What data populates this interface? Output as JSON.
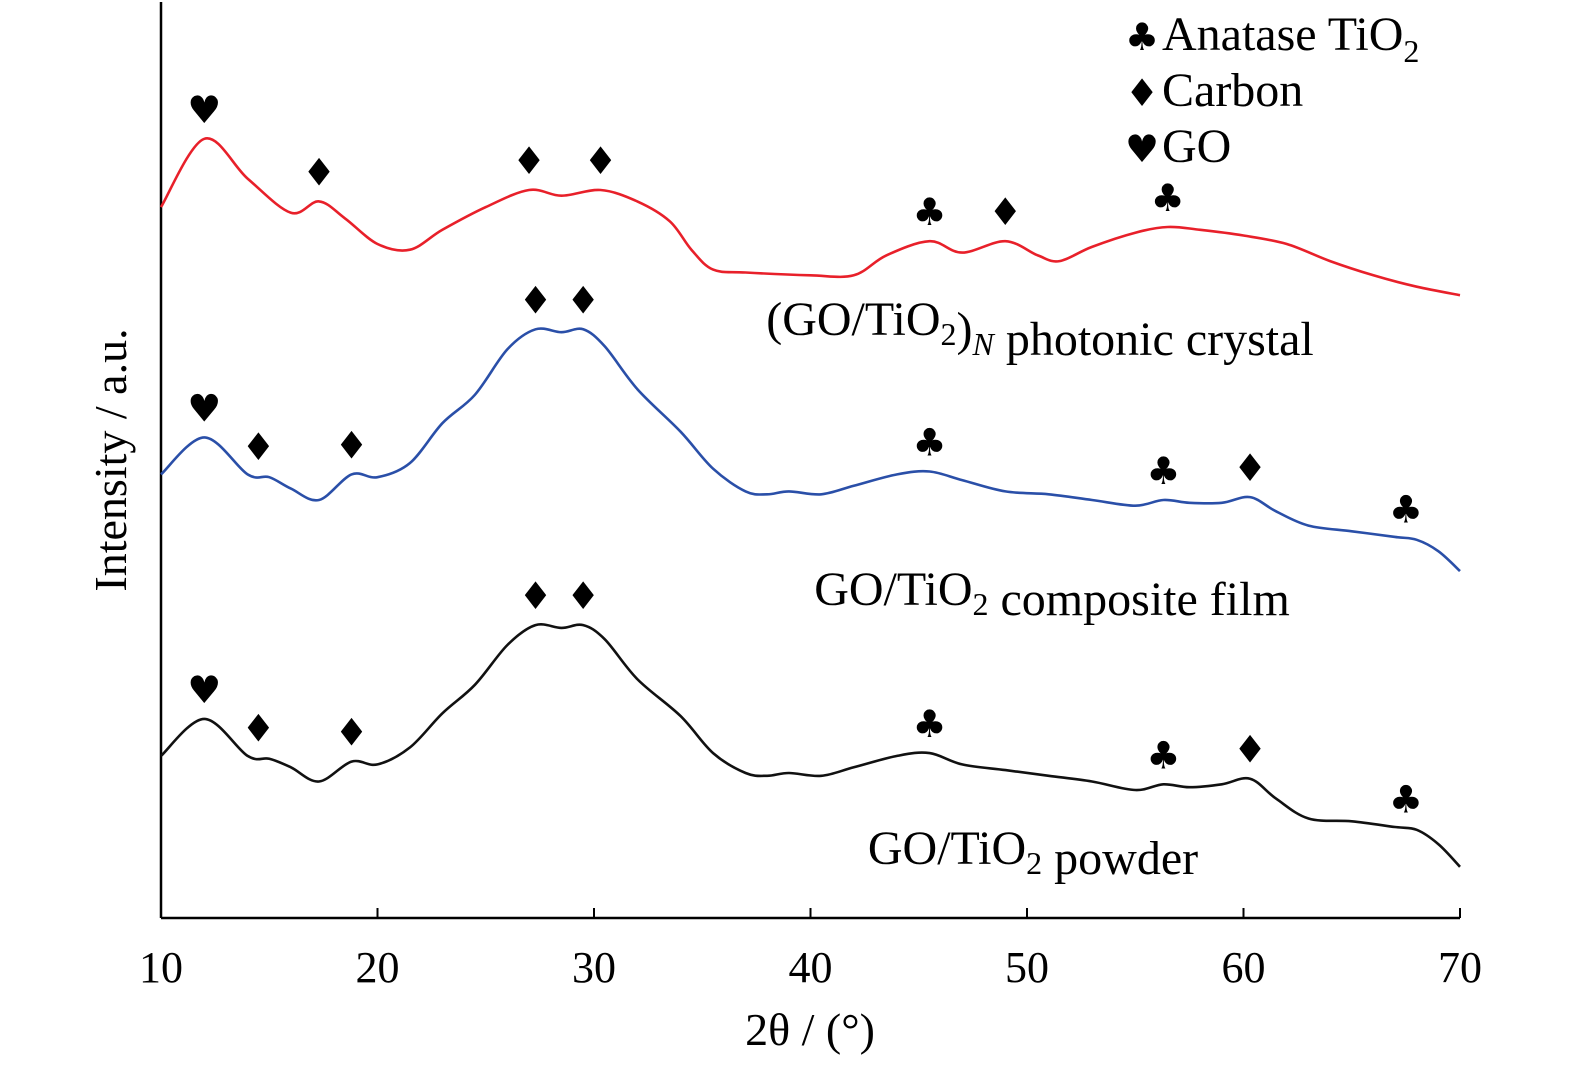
{
  "chart_data": {
    "type": "line",
    "xlabel": "2θ / (°)",
    "ylabel": "Intensity / a.u.",
    "xlim": [
      10,
      70
    ],
    "ylim": [
      0,
      3.2
    ],
    "xticks": [
      "10",
      "20",
      "30",
      "40",
      "50",
      "60",
      "70"
    ],
    "yticks": "none",
    "grid": false,
    "legend": {
      "placement": "top-right",
      "entries": [
        {
          "symbol": "♣",
          "symbol_name": "club-icon",
          "label": "Anatase TiO",
          "sub": "2"
        },
        {
          "symbol": "♦",
          "symbol_name": "diamond-icon",
          "label": "Carbon",
          "sub": ""
        },
        {
          "symbol": "♥",
          "symbol_name": "heart-icon",
          "label": "GO",
          "sub": ""
        }
      ]
    },
    "series": [
      {
        "name": "(GO/TiO2)N photonic crystal",
        "label_parts": {
          "a": "(GO/TiO",
          "sub1": "2",
          "b": ")",
          "sub2": "N",
          "c": " photonic crystal"
        },
        "color": "#e8202a",
        "points": [
          [
            10,
            2.5
          ],
          [
            12,
            2.74
          ],
          [
            14,
            2.6
          ],
          [
            16,
            2.48
          ],
          [
            17.3,
            2.52
          ],
          [
            18.5,
            2.46
          ],
          [
            20,
            2.37
          ],
          [
            21.5,
            2.35
          ],
          [
            23,
            2.42
          ],
          [
            25,
            2.5
          ],
          [
            27,
            2.56
          ],
          [
            28.5,
            2.54
          ],
          [
            30.3,
            2.56
          ],
          [
            32,
            2.52
          ],
          [
            33.5,
            2.45
          ],
          [
            34.5,
            2.35
          ],
          [
            35.5,
            2.28
          ],
          [
            37,
            2.27
          ],
          [
            40,
            2.26
          ],
          [
            42,
            2.26
          ],
          [
            43.5,
            2.33
          ],
          [
            45.5,
            2.38
          ],
          [
            47,
            2.34
          ],
          [
            49,
            2.38
          ],
          [
            50.5,
            2.33
          ],
          [
            51.5,
            2.31
          ],
          [
            53,
            2.36
          ],
          [
            55,
            2.41
          ],
          [
            56.5,
            2.43
          ],
          [
            58,
            2.42
          ],
          [
            60,
            2.4
          ],
          [
            62,
            2.37
          ],
          [
            64,
            2.31
          ],
          [
            66,
            2.26
          ],
          [
            68,
            2.22
          ],
          [
            70,
            2.19
          ]
        ],
        "markers": [
          {
            "x": 12,
            "symbol": "♥"
          },
          {
            "x": 17.3,
            "symbol": "♦"
          },
          {
            "x": 27,
            "symbol": "♦"
          },
          {
            "x": 30.3,
            "symbol": "♦"
          },
          {
            "x": 45.5,
            "symbol": "♣"
          },
          {
            "x": 49,
            "symbol": "♦"
          },
          {
            "x": 56.5,
            "symbol": "♣"
          }
        ]
      },
      {
        "name": "GO/TiO2 composite film",
        "label_parts": {
          "a": "GO/TiO",
          "sub1": "2",
          "b": " composite film",
          "sub2": "",
          "c": ""
        },
        "color": "#2a4fa8",
        "points": [
          [
            10,
            1.56
          ],
          [
            12,
            1.69
          ],
          [
            14,
            1.56
          ],
          [
            15,
            1.55
          ],
          [
            16,
            1.51
          ],
          [
            17.3,
            1.47
          ],
          [
            18.8,
            1.56
          ],
          [
            20,
            1.55
          ],
          [
            21.5,
            1.6
          ],
          [
            23,
            1.74
          ],
          [
            24.5,
            1.84
          ],
          [
            26,
            2.0
          ],
          [
            27.3,
            2.07
          ],
          [
            28.5,
            2.06
          ],
          [
            29.5,
            2.07
          ],
          [
            30.5,
            2.01
          ],
          [
            32,
            1.86
          ],
          [
            34,
            1.71
          ],
          [
            35.5,
            1.58
          ],
          [
            37,
            1.5
          ],
          [
            38,
            1.49
          ],
          [
            39,
            1.5
          ],
          [
            40.5,
            1.49
          ],
          [
            42,
            1.52
          ],
          [
            44,
            1.56
          ],
          [
            45.5,
            1.57
          ],
          [
            47,
            1.54
          ],
          [
            49,
            1.5
          ],
          [
            51,
            1.49
          ],
          [
            53,
            1.47
          ],
          [
            55,
            1.45
          ],
          [
            56.3,
            1.47
          ],
          [
            57.5,
            1.46
          ],
          [
            59,
            1.46
          ],
          [
            60.3,
            1.48
          ],
          [
            61.5,
            1.43
          ],
          [
            63,
            1.38
          ],
          [
            65,
            1.36
          ],
          [
            67,
            1.34
          ],
          [
            68,
            1.33
          ],
          [
            69,
            1.29
          ],
          [
            70,
            1.22
          ]
        ],
        "markers": [
          {
            "x": 12,
            "symbol": "♥"
          },
          {
            "x": 14.5,
            "symbol": "♦"
          },
          {
            "x": 18.8,
            "symbol": "♦"
          },
          {
            "x": 27.3,
            "symbol": "♦"
          },
          {
            "x": 29.5,
            "symbol": "♦"
          },
          {
            "x": 45.5,
            "symbol": "♣"
          },
          {
            "x": 56.3,
            "symbol": "♣"
          },
          {
            "x": 60.3,
            "symbol": "♦"
          },
          {
            "x": 67.5,
            "symbol": "♣"
          }
        ]
      },
      {
        "name": "GO/TiO2 powder",
        "label_parts": {
          "a": "GO/TiO",
          "sub1": "2",
          "b": " powder",
          "sub2": "",
          "c": ""
        },
        "color": "#111111",
        "points": [
          [
            10,
            0.57
          ],
          [
            12,
            0.7
          ],
          [
            14,
            0.57
          ],
          [
            15,
            0.56
          ],
          [
            16,
            0.53
          ],
          [
            17.3,
            0.48
          ],
          [
            18.8,
            0.55
          ],
          [
            20,
            0.54
          ],
          [
            21.5,
            0.6
          ],
          [
            23,
            0.72
          ],
          [
            24.5,
            0.82
          ],
          [
            26,
            0.96
          ],
          [
            27.3,
            1.03
          ],
          [
            28.5,
            1.02
          ],
          [
            29.5,
            1.03
          ],
          [
            30.5,
            0.98
          ],
          [
            32,
            0.84
          ],
          [
            34,
            0.71
          ],
          [
            35.5,
            0.58
          ],
          [
            37,
            0.51
          ],
          [
            38,
            0.5
          ],
          [
            39,
            0.51
          ],
          [
            40.5,
            0.5
          ],
          [
            42,
            0.53
          ],
          [
            44,
            0.57
          ],
          [
            45.5,
            0.58
          ],
          [
            47,
            0.54
          ],
          [
            49,
            0.52
          ],
          [
            51,
            0.5
          ],
          [
            53,
            0.48
          ],
          [
            55,
            0.45
          ],
          [
            56.3,
            0.47
          ],
          [
            57.5,
            0.46
          ],
          [
            59,
            0.47
          ],
          [
            60.3,
            0.49
          ],
          [
            61.5,
            0.42
          ],
          [
            63,
            0.35
          ],
          [
            65,
            0.34
          ],
          [
            67,
            0.32
          ],
          [
            68,
            0.31
          ],
          [
            69,
            0.26
          ],
          [
            70,
            0.18
          ]
        ],
        "markers": [
          {
            "x": 12,
            "symbol": "♥"
          },
          {
            "x": 14.5,
            "symbol": "♦"
          },
          {
            "x": 18.8,
            "symbol": "♦"
          },
          {
            "x": 27.3,
            "symbol": "♦"
          },
          {
            "x": 29.5,
            "symbol": "♦"
          },
          {
            "x": 45.5,
            "symbol": "♣"
          },
          {
            "x": 56.3,
            "symbol": "♣"
          },
          {
            "x": 60.3,
            "symbol": "♦"
          },
          {
            "x": 67.5,
            "symbol": "♣"
          }
        ]
      }
    ]
  }
}
